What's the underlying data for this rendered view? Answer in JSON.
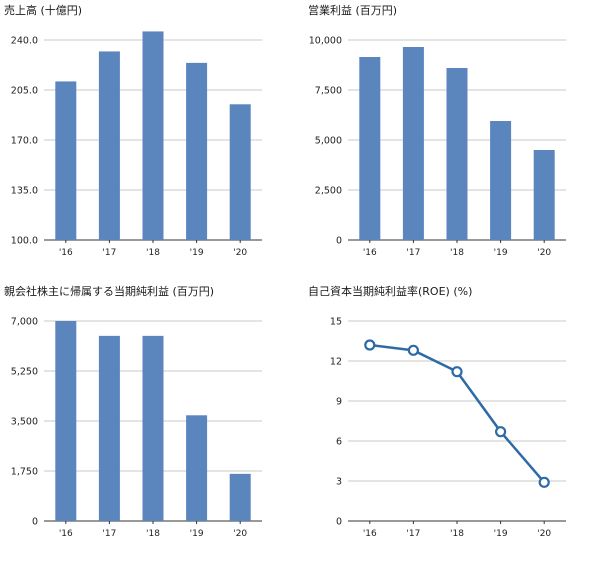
{
  "chart_data": [
    {
      "type": "bar",
      "title": "売上高 (十億円)",
      "categories": [
        "'16",
        "'17",
        "'18",
        "'19",
        "'20"
      ],
      "values": [
        211,
        232,
        246,
        224,
        195
      ],
      "ylim": [
        100,
        240
      ],
      "yticks": [
        "100.0",
        "135.0",
        "170.0",
        "205.0",
        "240.0"
      ],
      "color": "#5b85bd",
      "grid": true
    },
    {
      "type": "bar",
      "title": "営業利益 (百万円)",
      "categories": [
        "'16",
        "'17",
        "'18",
        "'19",
        "'20"
      ],
      "values": [
        9150,
        9650,
        8600,
        5950,
        4500
      ],
      "ylim": [
        0,
        10000
      ],
      "yticks": [
        "0",
        "2,500",
        "5,000",
        "7,500",
        "10,000"
      ],
      "color": "#5b85bd",
      "grid": true
    },
    {
      "type": "bar",
      "title": "親会社株主に帰属する当期純利益 (百万円)",
      "categories": [
        "'16",
        "'17",
        "'18",
        "'19",
        "'20"
      ],
      "values": [
        7000,
        6480,
        6480,
        3700,
        1650
      ],
      "ylim": [
        0,
        7000
      ],
      "yticks": [
        "0",
        "1,750",
        "3,500",
        "5,250",
        "7,000"
      ],
      "color": "#5b85bd",
      "grid": true
    },
    {
      "type": "line",
      "title": "自己資本当期純利益率(ROE) (%)",
      "categories": [
        "'16",
        "'17",
        "'18",
        "'19",
        "'20"
      ],
      "values": [
        13.2,
        12.8,
        11.2,
        6.7,
        2.9
      ],
      "ylim": [
        0,
        15
      ],
      "yticks": [
        "0",
        "3",
        "6",
        "9",
        "12",
        "15"
      ],
      "color": "#2d6aa6",
      "grid": true
    }
  ]
}
